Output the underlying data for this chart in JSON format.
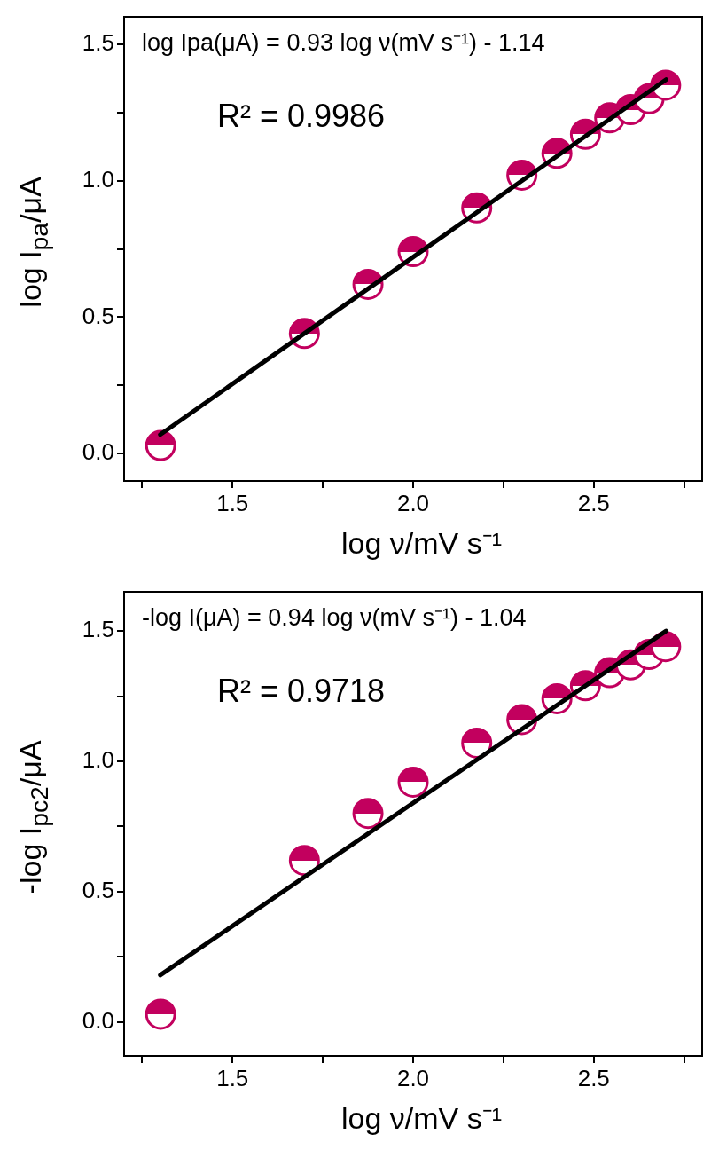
{
  "chart_data": [
    {
      "type": "scatter",
      "xlabel": "log ν/mV s⁻¹",
      "ylabel": "log I$_{pa}$/μA",
      "xlim": [
        1.2,
        2.8
      ],
      "ylim": [
        -0.1,
        1.6
      ],
      "xticks": [
        {
          "value": 1.25,
          "label": null
        },
        {
          "value": 1.5,
          "label": "1.5"
        },
        {
          "value": 1.75,
          "label": null
        },
        {
          "value": 2.0,
          "label": "2.0"
        },
        {
          "value": 2.25,
          "label": null
        },
        {
          "value": 2.5,
          "label": "2.5"
        },
        {
          "value": 2.75,
          "label": null
        }
      ],
      "yticks": [
        {
          "value": 0,
          "label": "0.0"
        },
        {
          "value": 0.25,
          "label": null
        },
        {
          "value": 0.5,
          "label": "0.5"
        },
        {
          "value": 0.75,
          "label": null
        },
        {
          "value": 1.0,
          "label": "1.0"
        },
        {
          "value": 1.25,
          "label": null
        },
        {
          "value": 1.5,
          "label": "1.5"
        }
      ],
      "grid": false,
      "legend": false,
      "annotations": [
        "log Ipa(μA) = 0.93 log ν(mV s⁻¹) - 1.14",
        "R² = 0.9986"
      ],
      "series": [
        {
          "type": "scatter",
          "color": "#c2005e",
          "marker": "circle",
          "x": [
            1.301,
            1.699,
            1.875,
            2.0,
            2.176,
            2.301,
            2.398,
            2.477,
            2.544,
            2.602,
            2.653,
            2.699
          ],
          "values": [
            0.03,
            0.44,
            0.62,
            0.74,
            0.9,
            1.02,
            1.1,
            1.17,
            1.23,
            1.26,
            1.3,
            1.35
          ]
        },
        {
          "type": "line",
          "color": "#000000",
          "x": [
            1.3,
            2.7
          ],
          "values": [
            0.07,
            1.37
          ],
          "line_style": "solid",
          "marker": "none"
        }
      ]
    },
    {
      "type": "scatter",
      "xlabel": "log ν/mV s⁻¹",
      "ylabel": "-log I$_{pc2}$/μA",
      "xlim": [
        1.2,
        2.8
      ],
      "ylim": [
        -0.13,
        1.65
      ],
      "xticks": [
        {
          "value": 1.25,
          "label": null
        },
        {
          "value": 1.5,
          "label": "1.5"
        },
        {
          "value": 1.75,
          "label": null
        },
        {
          "value": 2.0,
          "label": "2.0"
        },
        {
          "value": 2.25,
          "label": null
        },
        {
          "value": 2.5,
          "label": "2.5"
        },
        {
          "value": 2.75,
          "label": null
        }
      ],
      "yticks": [
        {
          "value": 0,
          "label": "0.0"
        },
        {
          "value": 0.25,
          "label": null
        },
        {
          "value": 0.5,
          "label": "0.5"
        },
        {
          "value": 0.75,
          "label": null
        },
        {
          "value": 1.0,
          "label": "1.0"
        },
        {
          "value": 1.25,
          "label": null
        },
        {
          "value": 1.5,
          "label": "1.5"
        }
      ],
      "grid": false,
      "legend": false,
      "annotations": [
        "-log I(μA) = 0.94 log ν(mV s⁻¹) - 1.04",
        "R² = 0.9718"
      ],
      "series": [
        {
          "type": "scatter",
          "color": "#c2005e",
          "marker": "circle",
          "x": [
            1.301,
            1.699,
            1.875,
            2.0,
            2.176,
            2.301,
            2.398,
            2.477,
            2.544,
            2.602,
            2.653,
            2.699
          ],
          "values": [
            0.03,
            0.62,
            0.8,
            0.92,
            1.07,
            1.16,
            1.24,
            1.29,
            1.34,
            1.37,
            1.41,
            1.44
          ]
        },
        {
          "type": "line",
          "color": "#000000",
          "x": [
            1.3,
            2.7
          ],
          "values": [
            0.18,
            1.5
          ],
          "line_style": "solid",
          "marker": "none"
        }
      ]
    }
  ]
}
